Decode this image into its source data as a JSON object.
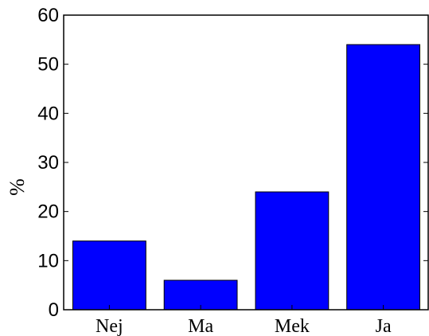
{
  "chart_data": {
    "type": "bar",
    "categories": [
      "Nej",
      "Ma",
      "Mek",
      "Ja"
    ],
    "values": [
      14,
      6,
      24,
      54
    ],
    "title": "",
    "xlabel": "",
    "ylabel": "%",
    "ylim": [
      0,
      60
    ],
    "yticks": [
      0,
      10,
      20,
      30,
      40,
      50,
      60
    ],
    "grid": false,
    "bar_color": "#0000ff",
    "edge_color": "#000000"
  }
}
